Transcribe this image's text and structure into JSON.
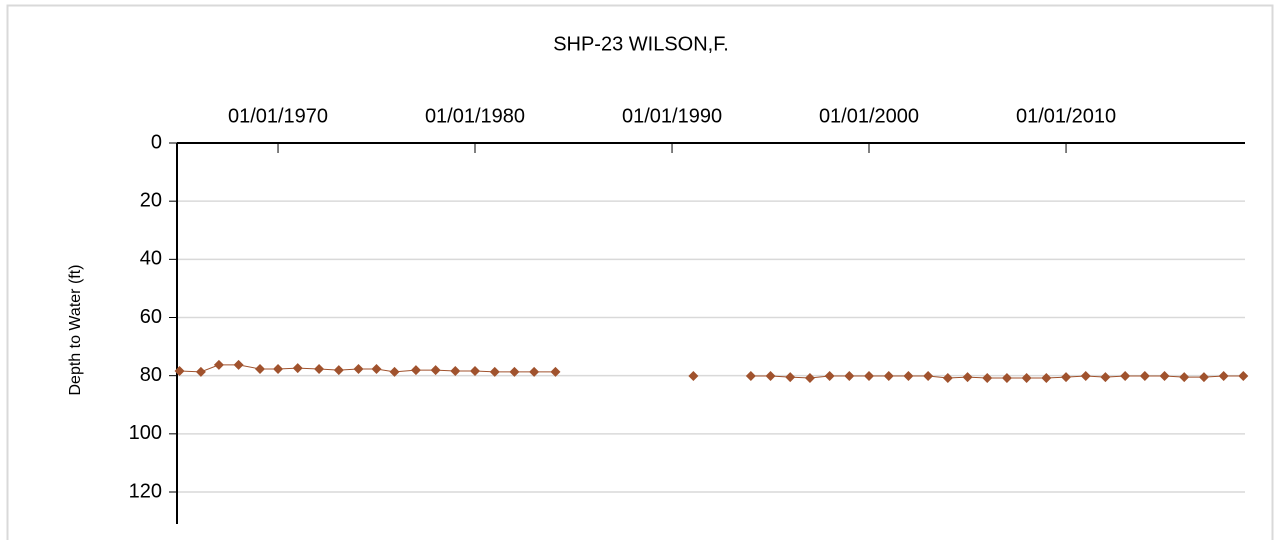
{
  "chart_data": {
    "type": "line",
    "title": "SHP-23  WILSON,F.",
    "y_label": "Depth to Water (ft)",
    "x": [
      "1965-01-01",
      "1966-02-01",
      "1967-01-01",
      "1968-01-01",
      "1969-02-01",
      "1970-01-01",
      "1971-01-01",
      "1972-02-01",
      "1973-02-01",
      "1974-02-01",
      "1975-01-01",
      "1975-12-01",
      "1977-01-01",
      "1978-01-01",
      "1979-01-01",
      "1980-01-01",
      "1981-01-01",
      "1982-01-01",
      "1983-01-01",
      "1984-02-01",
      "1987-01-01",
      "1991-02-01",
      "1993-01-01",
      "1994-01-01",
      "1995-01-01",
      "1996-01-01",
      "1997-01-01",
      "1998-01-01",
      "1999-01-01",
      "2000-01-01",
      "2001-01-01",
      "2002-01-01",
      "2003-01-01",
      "2004-01-01",
      "2005-01-01",
      "2006-01-01",
      "2007-01-01",
      "2008-01-01",
      "2009-01-01",
      "2010-01-01",
      "2011-01-01",
      "2012-01-01",
      "2013-01-01",
      "2014-01-01",
      "2015-01-01",
      "2016-01-01",
      "2017-01-01",
      "2018-01-01",
      "2019-01-01"
    ],
    "series": [
      {
        "name": "Depth to Water (ft)",
        "color": "#a0522d",
        "values": [
          78.4,
          78.7,
          76.3,
          76.3,
          77.7,
          77.7,
          77.4,
          77.7,
          78.1,
          77.7,
          77.7,
          78.7,
          78.1,
          78.1,
          78.4,
          78.4,
          78.7,
          78.7,
          78.7,
          78.7,
          null,
          80.1,
          null,
          80.1,
          80.1,
          80.5,
          80.8,
          80.1,
          80.1,
          80.1,
          80.1,
          80.1,
          80.1,
          80.8,
          80.5,
          80.8,
          80.8,
          80.8,
          80.8,
          80.5,
          80.1,
          80.5,
          80.1,
          80.1,
          80.1,
          80.5,
          80.5,
          80.1,
          80.1
        ]
      }
    ],
    "xlim": [
      "1964-11-15",
      "2019-02-01"
    ],
    "xticks": [
      {
        "value": "1970-01-01",
        "label": "01/01/1970"
      },
      {
        "value": "1980-01-01",
        "label": "01/01/1980"
      },
      {
        "value": "1990-01-01",
        "label": "01/01/1990"
      },
      {
        "value": "2000-01-01",
        "label": "01/01/2000"
      },
      {
        "value": "2010-01-01",
        "label": "01/01/2010"
      }
    ],
    "ylim": [
      0,
      131
    ],
    "yticks": [
      0,
      20,
      40,
      60,
      80,
      100,
      120
    ],
    "y_inverted": true,
    "x_axis_position": "top",
    "grid": true
  }
}
